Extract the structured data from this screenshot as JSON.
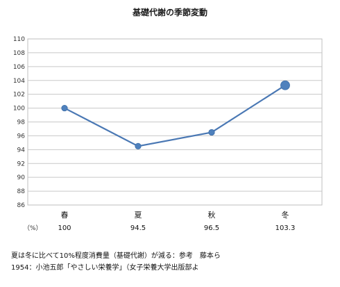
{
  "chart_data": {
    "type": "line",
    "title": "基礎代謝の季節変動",
    "categories": [
      "春",
      "夏",
      "秋",
      "冬"
    ],
    "values": [
      100,
      94.5,
      96.5,
      103.3
    ],
    "value_labels": [
      "100",
      "94.5",
      "96.5",
      "103.3"
    ],
    "unit_label": "（%）",
    "yticks": [
      "110",
      "108",
      "106",
      "104",
      "102",
      "100",
      "98",
      "96",
      "94",
      "92",
      "90",
      "88",
      "86"
    ],
    "ylim": [
      86,
      110
    ],
    "ystep": 2,
    "grid": true,
    "line_color": "#4a78b4",
    "marker_color": "#4f81bd",
    "highlight_index": 3
  },
  "notes": [
    "夏は冬に比べて10%程度消費量（基礎代謝）が減る：参考　藤本ら",
    "1954：小池五郎「やさしい栄養学」（女子栄養大学出版部よ"
  ]
}
